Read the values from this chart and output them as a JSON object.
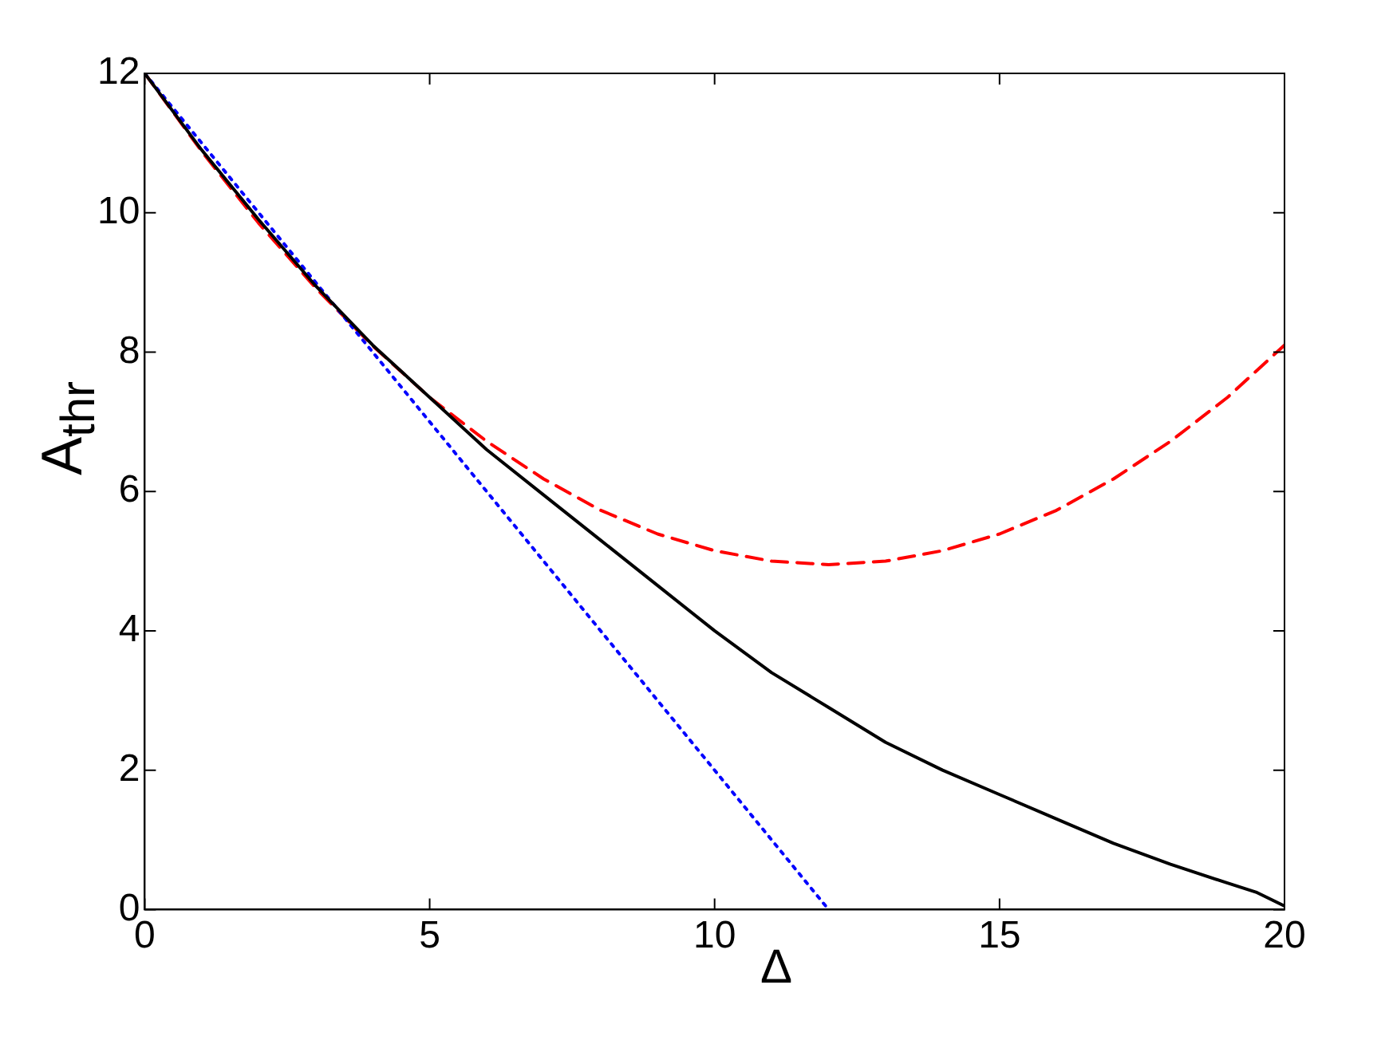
{
  "chart_data": {
    "type": "line",
    "xlabel": "Δ",
    "ylabel": "A$_{thr}$",
    "xlim": [
      0,
      20
    ],
    "ylim": [
      0,
      12
    ],
    "xticks": [
      0,
      5,
      10,
      15,
      20
    ],
    "yticks": [
      0,
      2,
      4,
      6,
      8,
      10,
      12
    ],
    "grid": false,
    "legend": false,
    "marker": "none",
    "series": [
      {
        "color": "#000000",
        "line_style": "solid",
        "x": [
          0,
          1,
          2,
          3,
          4,
          5,
          6,
          7,
          8,
          9,
          10,
          11,
          12,
          13,
          14,
          15,
          16,
          17,
          18,
          19,
          19.5,
          20
        ],
        "values": [
          12,
          10.9,
          9.9,
          8.95,
          8.1,
          7.35,
          6.6,
          5.95,
          5.3,
          4.65,
          4.0,
          3.4,
          2.9,
          2.4,
          2.0,
          1.65,
          1.3,
          0.95,
          0.65,
          0.38,
          0.25,
          0.05
        ]
      },
      {
        "color": "#0000ff",
        "line_style": "dotted",
        "x": [
          0,
          12
        ],
        "values": [
          12,
          0
        ]
      },
      {
        "color": "#ff0000",
        "line_style": "dashed",
        "x": [
          0,
          1,
          2,
          3,
          4,
          5,
          6,
          7,
          8,
          9,
          10,
          11,
          12,
          13,
          14,
          15,
          16,
          17,
          18,
          19,
          20
        ],
        "values": [
          12,
          10.88,
          9.85,
          8.92,
          8.09,
          7.35,
          6.72,
          6.18,
          5.73,
          5.39,
          5.15,
          5.0,
          4.95,
          5.0,
          5.15,
          5.39,
          5.73,
          6.18,
          6.72,
          7.35,
          8.1
        ]
      }
    ]
  }
}
